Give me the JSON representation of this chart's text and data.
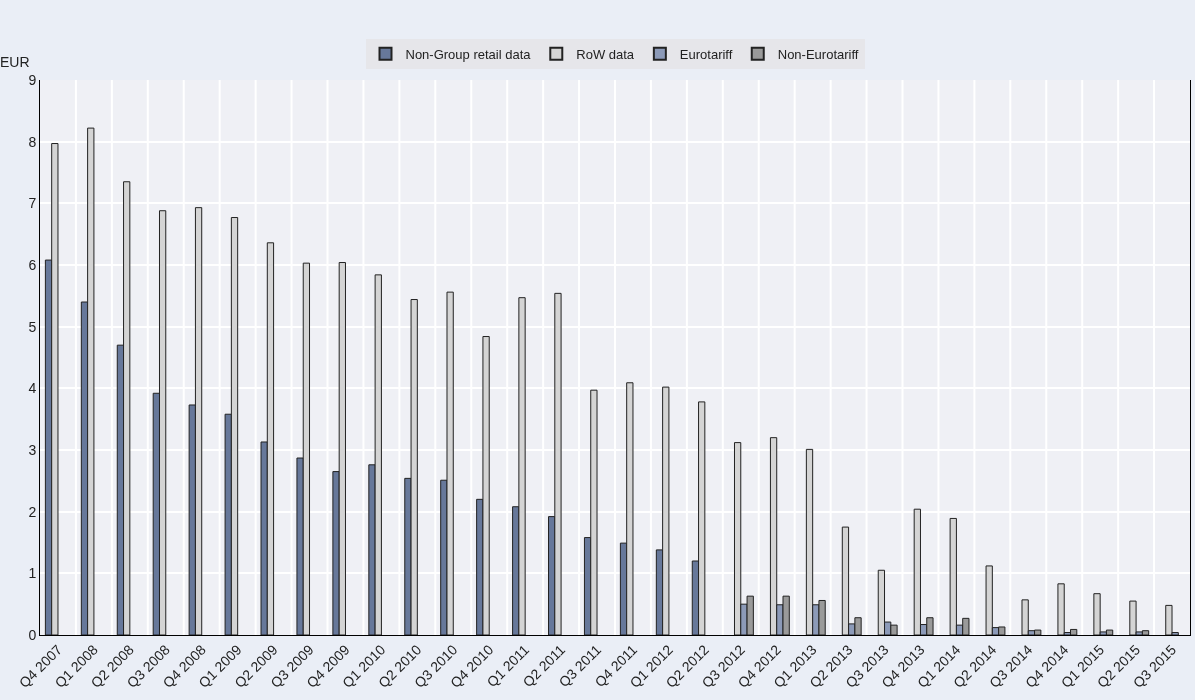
{
  "chart_data": {
    "type": "bar",
    "ylabel": "EUR",
    "categories": [
      "Q4 2007",
      "Q1 2008",
      "Q2 2008",
      "Q3 2008",
      "Q4 2008",
      "Q1 2009",
      "Q2 2009",
      "Q3 2009",
      "Q4 2009",
      "Q1 2010",
      "Q2 2010",
      "Q3 2010",
      "Q4 2010",
      "Q1 2011",
      "Q2 2011",
      "Q3 2011",
      "Q4 2011",
      "Q1 2012",
      "Q2 2012",
      "Q3 2012",
      "Q4 2012",
      "Q1 2013",
      "Q2 2013",
      "Q3 2013",
      "Q4 2013",
      "Q1 2014",
      "Q2 2014",
      "Q3 2014",
      "Q4 2014",
      "Q1 2015",
      "Q2 2015",
      "Q3 2015"
    ],
    "series": [
      {
        "name": "Non-Group retail data",
        "color": "#67789a",
        "values": [
          6.08,
          5.4,
          4.7,
          3.92,
          3.73,
          3.58,
          3.13,
          2.87,
          2.65,
          2.76,
          2.54,
          2.51,
          2.2,
          2.08,
          1.92,
          1.58,
          1.49,
          1.38,
          1.2,
          null,
          null,
          null,
          null,
          null,
          null,
          null,
          null,
          null,
          null,
          null,
          null,
          null
        ]
      },
      {
        "name": "RoW data",
        "color": "#d4d4d4",
        "values": [
          7.97,
          8.22,
          7.35,
          6.88,
          6.93,
          6.77,
          6.36,
          6.03,
          6.04,
          5.84,
          5.44,
          5.56,
          4.84,
          5.47,
          5.54,
          3.97,
          4.09,
          4.02,
          3.78,
          3.12,
          3.2,
          3.01,
          1.75,
          1.05,
          2.04,
          1.89,
          1.12,
          0.57,
          0.83,
          0.67,
          0.55,
          0.48
        ]
      },
      {
        "name": "Eurotariff",
        "color": "#8c9ab8",
        "values": [
          null,
          null,
          null,
          null,
          null,
          null,
          null,
          null,
          null,
          null,
          null,
          null,
          null,
          null,
          null,
          null,
          null,
          null,
          null,
          0.5,
          0.49,
          0.49,
          0.18,
          0.21,
          0.17,
          0.16,
          0.12,
          0.07,
          0.04,
          0.05,
          0.05,
          0.04
        ]
      },
      {
        "name": "Non-Eurotariff",
        "color": "#9a9a9a",
        "values": [
          null,
          null,
          null,
          null,
          null,
          null,
          null,
          null,
          null,
          null,
          null,
          null,
          null,
          null,
          null,
          null,
          null,
          null,
          null,
          0.63,
          0.63,
          0.56,
          0.28,
          0.16,
          0.28,
          0.27,
          0.13,
          0.08,
          0.09,
          0.08,
          0.07,
          null
        ]
      }
    ],
    "ylim": [
      0,
      9
    ],
    "yticks": [
      0,
      1,
      2,
      3,
      4,
      5,
      6,
      7,
      8,
      9
    ],
    "grid": true,
    "legend": "top"
  }
}
